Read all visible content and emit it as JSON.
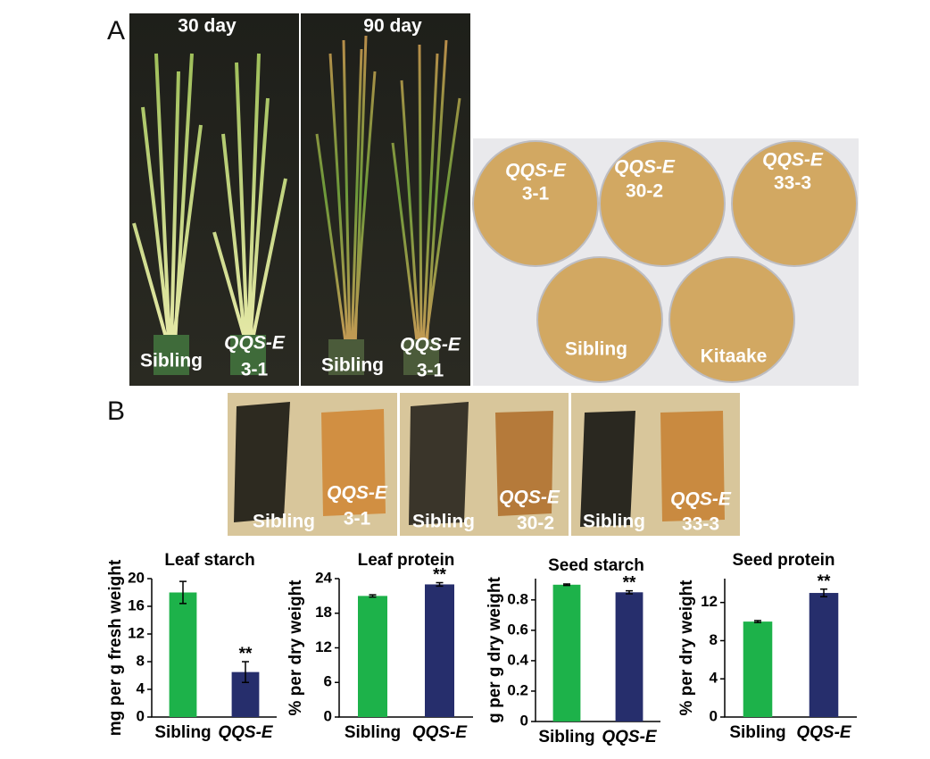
{
  "panels": {
    "A": {
      "letter": "A",
      "photos": [
        {
          "title": "30 day",
          "labels": [
            "Sibling",
            "QQS-E",
            "3-1"
          ]
        },
        {
          "title": "90 day",
          "labels": [
            "Sibling",
            "QQS-E",
            "3-1"
          ]
        }
      ],
      "seeds": [
        {
          "line1": "QQS-E",
          "line2": "3-1"
        },
        {
          "line1": "QQS-E",
          "line2": "30-2"
        },
        {
          "line1": "QQS-E",
          "line2": "33-3"
        },
        {
          "line1": "Sibling"
        },
        {
          "line1": "Kitaake"
        }
      ]
    },
    "B": {
      "letter": "B",
      "strips": [
        {
          "left": "Sibling",
          "right1": "QQS-E",
          "right2": "3-1"
        },
        {
          "left": "Sibling",
          "right1": "QQS-E",
          "right2": "30-2"
        },
        {
          "left": "Sibling",
          "right1": "QQS-E",
          "right2": "33-3"
        }
      ]
    }
  },
  "chart_data": [
    {
      "type": "bar",
      "title": "Leaf starch",
      "y_label": "mg per g fresh weight",
      "categories": [
        "Sibling",
        "QQS-E"
      ],
      "values": [
        18,
        6.5
      ],
      "errors": [
        1.6,
        1.5
      ],
      "colors": [
        "#1db24a",
        "#262e6c"
      ],
      "annotation": "**",
      "ylim": [
        0,
        20
      ],
      "yticks": [
        0,
        4,
        8,
        12,
        16,
        20
      ]
    },
    {
      "type": "bar",
      "title": "Leaf protein",
      "y_label": "% per dry weight",
      "categories": [
        "Sibling",
        "QQS-E"
      ],
      "values": [
        21,
        23
      ],
      "errors": [
        0.2,
        0.3
      ],
      "colors": [
        "#1db24a",
        "#262e6c"
      ],
      "annotation": "**",
      "ylim": [
        0,
        24
      ],
      "yticks": [
        0,
        6,
        12,
        18,
        24
      ]
    },
    {
      "type": "bar",
      "title": "Seed starch",
      "y_label": "g per g dry weight",
      "categories": [
        "Sibling",
        "QQS-E"
      ],
      "values": [
        0.9,
        0.85
      ],
      "errors": [
        0.005,
        0.01
      ],
      "colors": [
        "#1db24a",
        "#262e6c"
      ],
      "annotation": "**",
      "ylim": [
        0,
        0.94
      ],
      "yticks": [
        0,
        0.2,
        0.4,
        0.6,
        0.8
      ]
    },
    {
      "type": "bar",
      "title": "Seed protein",
      "y_label": "% per dry weight",
      "categories": [
        "Sibling",
        "QQS-E"
      ],
      "values": [
        10,
        13
      ],
      "errors": [
        0.1,
        0.4
      ],
      "colors": [
        "#1db24a",
        "#262e6c"
      ],
      "annotation": "**",
      "ylim": [
        0,
        14.5
      ],
      "yticks": [
        0,
        4,
        8,
        12
      ]
    }
  ]
}
